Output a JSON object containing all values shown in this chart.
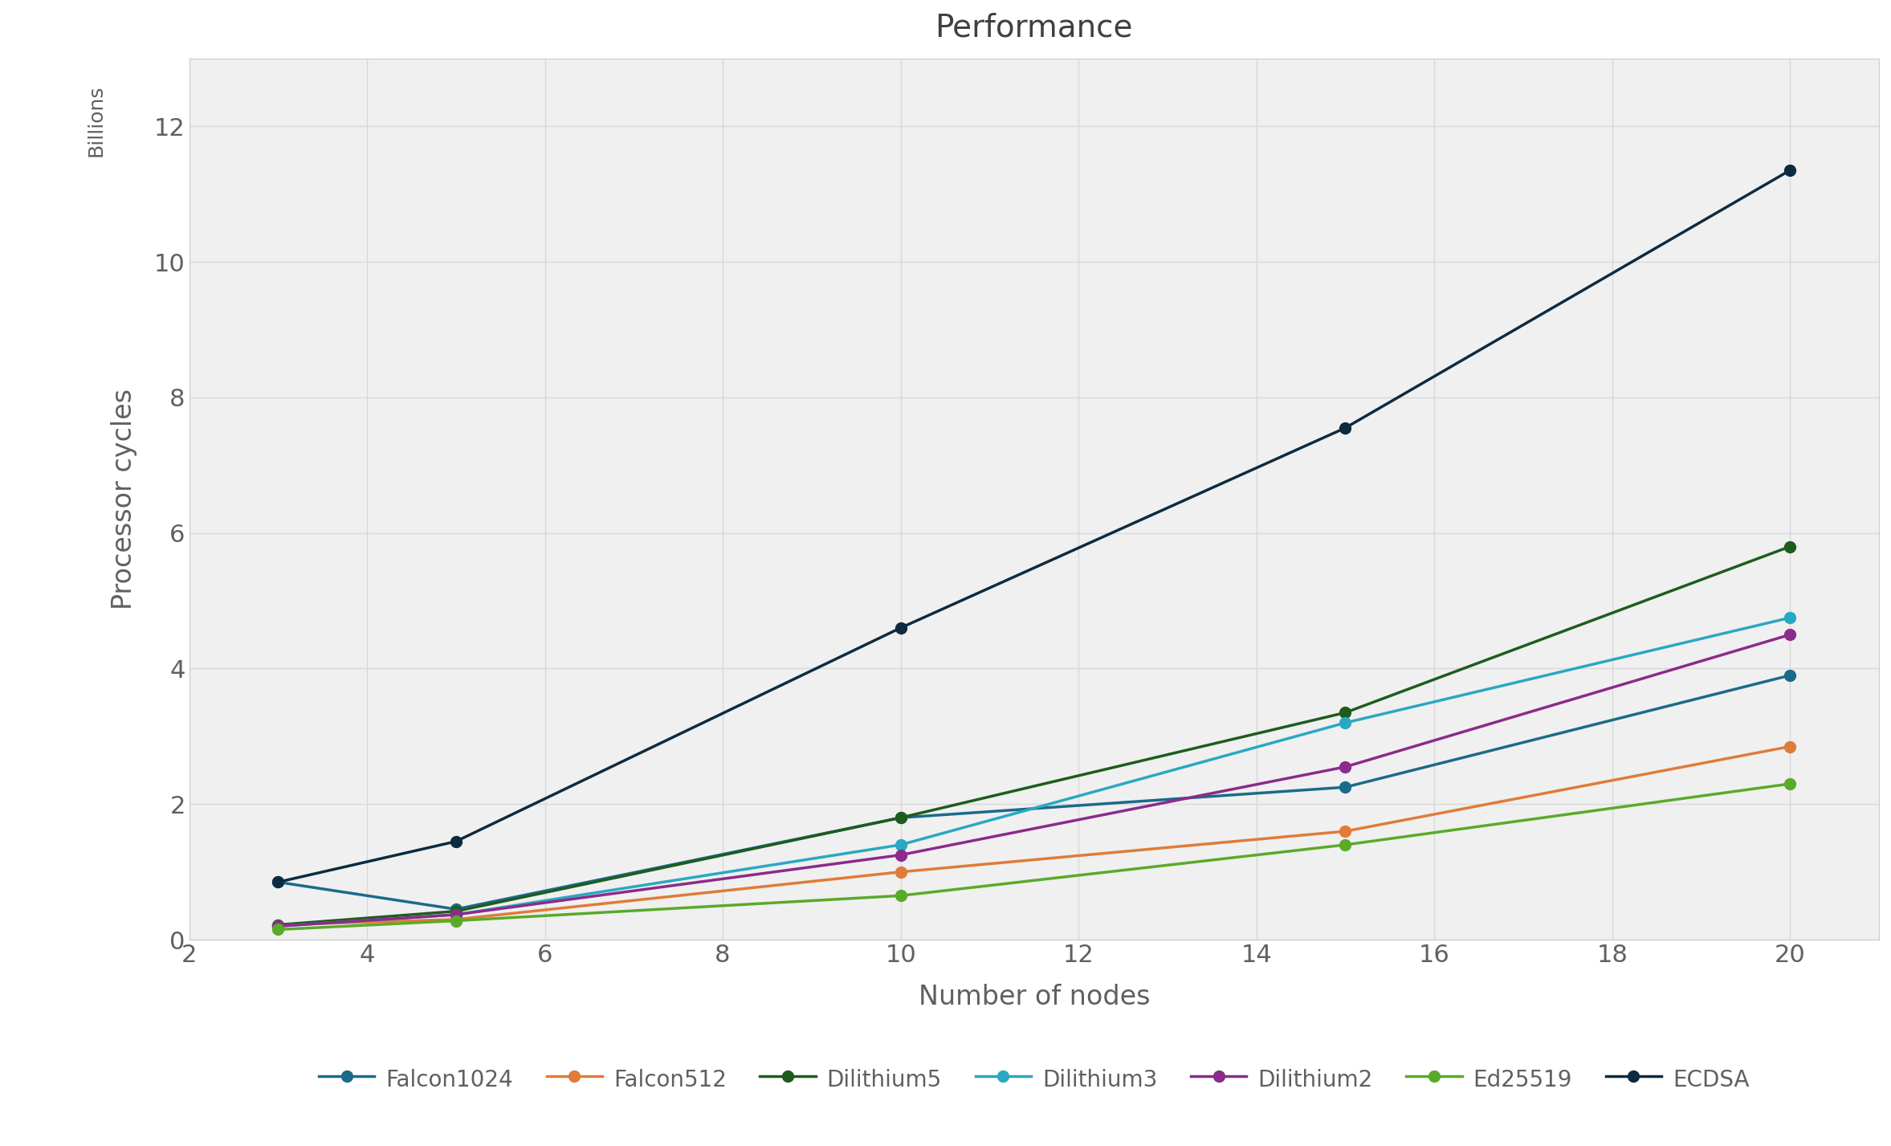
{
  "title": "Performance",
  "xlabel": "Number of nodes",
  "ylabel": "Processor cycles",
  "ylabel2": "Billions",
  "x": [
    3,
    5,
    10,
    15,
    20
  ],
  "series": [
    {
      "label": "Falcon1024",
      "color": "#1a6b8a",
      "values": [
        0.85,
        0.45,
        1.8,
        2.25,
        3.9
      ]
    },
    {
      "label": "Falcon512",
      "color": "#e07b39",
      "values": [
        0.22,
        0.3,
        1.0,
        1.6,
        2.85
      ]
    },
    {
      "label": "Dilithium5",
      "color": "#1e5c1e",
      "values": [
        0.22,
        0.42,
        1.8,
        3.35,
        5.8
      ]
    },
    {
      "label": "Dilithium3",
      "color": "#29a8c2",
      "values": [
        0.2,
        0.37,
        1.4,
        3.2,
        4.75
      ]
    },
    {
      "label": "Dilithium2",
      "color": "#8b2b8b",
      "values": [
        0.2,
        0.37,
        1.25,
        2.55,
        4.5
      ]
    },
    {
      "label": "Ed25519",
      "color": "#5aaa2a",
      "values": [
        0.15,
        0.28,
        0.65,
        1.4,
        2.3
      ]
    },
    {
      "label": "ECDSA",
      "color": "#0d2b40",
      "values": [
        0.85,
        1.45,
        4.6,
        7.55,
        11.35
      ]
    }
  ],
  "xlim": [
    2,
    21
  ],
  "ylim": [
    0,
    13
  ],
  "xticks": [
    2,
    4,
    6,
    8,
    10,
    12,
    14,
    16,
    18,
    20
  ],
  "yticks": [
    0,
    2,
    4,
    6,
    8,
    10,
    12
  ],
  "grid_color": "#d8d8d8",
  "plot_bg_color": "#f0f0f0",
  "fig_bg_color": "#ffffff",
  "title_fontsize": 28,
  "label_fontsize": 24,
  "tick_fontsize": 22,
  "legend_fontsize": 20,
  "billions_fontsize": 18,
  "linewidth": 2.5,
  "markersize": 10,
  "tick_color": "#606060",
  "label_color": "#606060",
  "title_color": "#404040"
}
